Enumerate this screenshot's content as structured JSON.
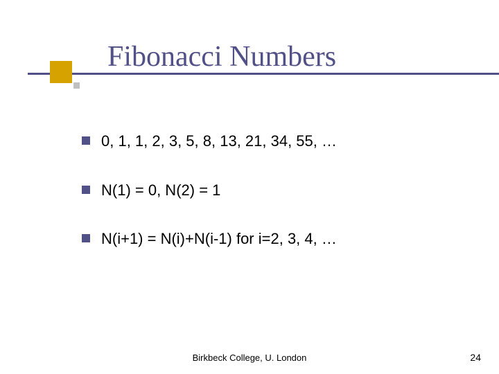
{
  "title": "Fibonacci Numbers",
  "bullets": [
    "0, 1, 1, 2, 3, 5, 8, 13, 21, 34, 55, …",
    "N(1) = 0, N(2) = 1",
    "N(i+1) = N(i)+N(i-1) for i=2, 3, 4, …"
  ],
  "footer": "Birkbeck College, U. London",
  "pageNumber": "24",
  "colors": {
    "titleColor": "#515187",
    "bulletColor": "#515187",
    "accentColor": "#d6a200",
    "underlineColor": "#515187",
    "textColor": "#000000",
    "smallBoxColor": "#c0c0c0",
    "background": "#ffffff"
  },
  "fonts": {
    "titleFamily": "Times New Roman, serif",
    "bodyFamily": "Verdana, Arial, sans-serif",
    "titleSize": 42,
    "bodySize": 22,
    "footerSize": 13
  }
}
